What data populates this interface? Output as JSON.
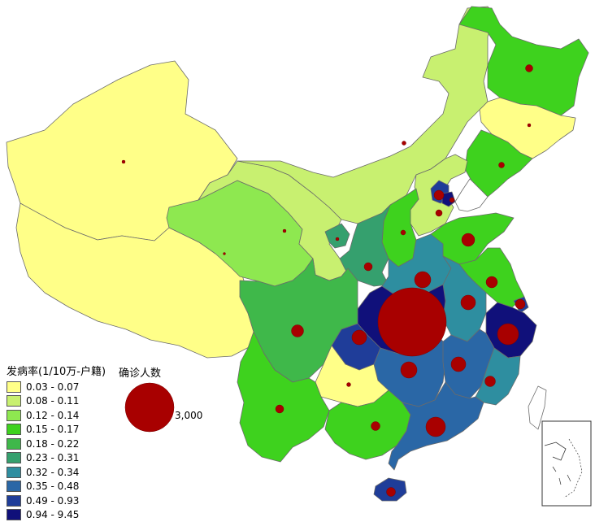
{
  "legend": {
    "title": "发病率(1/10万-户籍)",
    "classes": [
      {
        "label": "0.03 - 0.07",
        "color": "#ffff88"
      },
      {
        "label": "0.08 - 0.11",
        "color": "#c8f070"
      },
      {
        "label": "0.12 - 0.14",
        "color": "#8ee850"
      },
      {
        "label": "0.15 - 0.17",
        "color": "#3ed21e"
      },
      {
        "label": "0.18 - 0.22",
        "color": "#3fb84a"
      },
      {
        "label": "0.23 - 0.31",
        "color": "#35a06e"
      },
      {
        "label": "0.32 - 0.34",
        "color": "#2e8ea0"
      },
      {
        "label": "0.35 - 0.48",
        "color": "#2a67a6"
      },
      {
        "label": "0.49 - 0.93",
        "color": "#1f3d99"
      },
      {
        "label": "0.94 - 9.45",
        "color": "#10107a"
      }
    ]
  },
  "bubble_legend": {
    "title": "确诊人数",
    "value_label": "3,000",
    "bubble_color": "#a80000"
  },
  "map_colors": {
    "background": "#ffffff",
    "border": "#6b6b6b"
  }
}
